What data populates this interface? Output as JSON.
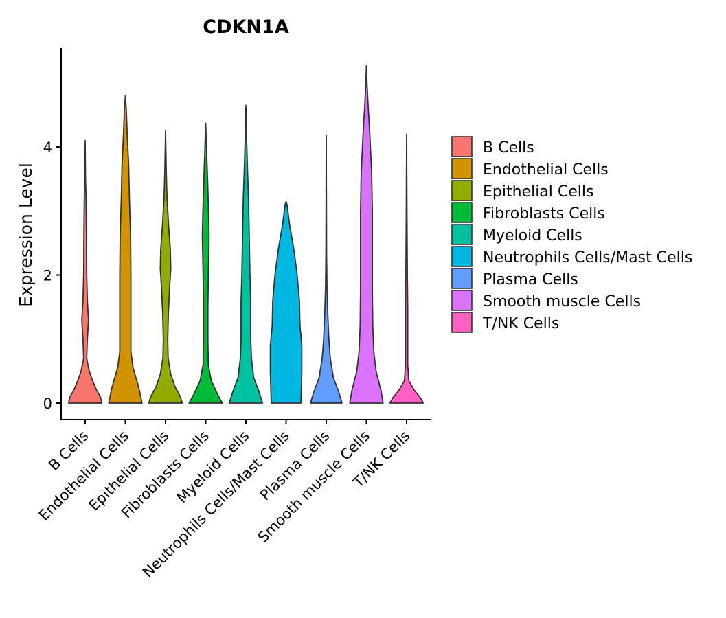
{
  "chart_data": {
    "type": "violin",
    "title": "CDKN1A",
    "xlabel": "",
    "ylabel": "Expression Level",
    "ylim": [
      -0.25,
      5.5
    ],
    "yticks": [
      0,
      2,
      4
    ],
    "categories": [
      "B Cells",
      "Endothelial Cells",
      "Epithelial Cells",
      "Fibroblasts Cells",
      "Myeloid Cells",
      "Neutrophils Cells/Mast Cells",
      "Plasma Cells",
      "Smooth muscle Cells",
      "T/NK Cells"
    ],
    "colors": [
      "#F8766D",
      "#D39200",
      "#93AA00",
      "#00BA38",
      "#00C19F",
      "#00B9E3",
      "#619CFF",
      "#DB72FB",
      "#FF61C3"
    ],
    "legend": {
      "position": "right",
      "entries": [
        "B Cells",
        "Endothelial Cells",
        "Epithelial Cells",
        "Fibroblasts Cells",
        "Myeloid Cells",
        "Neutrophils Cells/Mast Cells",
        "Plasma Cells",
        "Smooth muscle Cells",
        "T/NK Cells"
      ]
    },
    "distributions": [
      {
        "name": "B Cells",
        "max": 4.1,
        "profile": [
          [
            0,
            0.9
          ],
          [
            0.1,
            0.82
          ],
          [
            0.2,
            0.62
          ],
          [
            0.35,
            0.4
          ],
          [
            0.5,
            0.22
          ],
          [
            0.7,
            0.08
          ],
          [
            1.0,
            0.12
          ],
          [
            1.3,
            0.18
          ],
          [
            1.6,
            0.12
          ],
          [
            2.0,
            0.08
          ],
          [
            2.6,
            0.07
          ],
          [
            3.2,
            0.05
          ],
          [
            3.5,
            0.02
          ],
          [
            4.1,
            0.0
          ]
        ]
      },
      {
        "name": "Endothelial Cells",
        "max": 4.8,
        "profile": [
          [
            0,
            0.9
          ],
          [
            0.25,
            0.72
          ],
          [
            0.55,
            0.42
          ],
          [
            0.8,
            0.3
          ],
          [
            1.2,
            0.3
          ],
          [
            2.0,
            0.3
          ],
          [
            2.6,
            0.28
          ],
          [
            3.2,
            0.22
          ],
          [
            3.7,
            0.18
          ],
          [
            4.2,
            0.1
          ],
          [
            4.6,
            0.05
          ],
          [
            4.8,
            0.0
          ]
        ]
      },
      {
        "name": "Epithelial Cells",
        "max": 4.25,
        "profile": [
          [
            0,
            0.9
          ],
          [
            0.1,
            0.8
          ],
          [
            0.25,
            0.52
          ],
          [
            0.45,
            0.28
          ],
          [
            0.7,
            0.14
          ],
          [
            1.0,
            0.12
          ],
          [
            1.4,
            0.15
          ],
          [
            1.8,
            0.22
          ],
          [
            2.1,
            0.28
          ],
          [
            2.4,
            0.26
          ],
          [
            2.8,
            0.16
          ],
          [
            3.2,
            0.08
          ],
          [
            3.6,
            0.04
          ],
          [
            4.25,
            0.0
          ]
        ]
      },
      {
        "name": "Fibroblasts Cells",
        "max": 4.37,
        "profile": [
          [
            0,
            0.9
          ],
          [
            0.15,
            0.62
          ],
          [
            0.35,
            0.3
          ],
          [
            0.6,
            0.14
          ],
          [
            1.0,
            0.12
          ],
          [
            1.5,
            0.12
          ],
          [
            2.0,
            0.14
          ],
          [
            2.6,
            0.18
          ],
          [
            3.0,
            0.15
          ],
          [
            3.5,
            0.1
          ],
          [
            3.9,
            0.05
          ],
          [
            4.37,
            0.0
          ]
        ]
      },
      {
        "name": "Myeloid Cells",
        "max": 4.65,
        "profile": [
          [
            0,
            0.9
          ],
          [
            0.2,
            0.68
          ],
          [
            0.4,
            0.42
          ],
          [
            0.7,
            0.3
          ],
          [
            1.0,
            0.26
          ],
          [
            1.6,
            0.26
          ],
          [
            2.0,
            0.22
          ],
          [
            2.6,
            0.18
          ],
          [
            3.2,
            0.14
          ],
          [
            3.7,
            0.08
          ],
          [
            4.2,
            0.03
          ],
          [
            4.65,
            0.0
          ]
        ]
      },
      {
        "name": "Neutrophils Cells/Mast Cells",
        "max": 3.15,
        "profile": [
          [
            0,
            0.8
          ],
          [
            0.5,
            0.85
          ],
          [
            0.9,
            0.85
          ],
          [
            1.2,
            0.75
          ],
          [
            1.6,
            0.72
          ],
          [
            2.0,
            0.6
          ],
          [
            2.4,
            0.42
          ],
          [
            2.8,
            0.18
          ],
          [
            3.1,
            0.05
          ],
          [
            3.15,
            0.0
          ]
        ]
      },
      {
        "name": "Plasma Cells",
        "max": 4.18,
        "profile": [
          [
            0,
            0.85
          ],
          [
            0.15,
            0.7
          ],
          [
            0.4,
            0.38
          ],
          [
            0.7,
            0.22
          ],
          [
            1.0,
            0.14
          ],
          [
            1.4,
            0.08
          ],
          [
            1.8,
            0.04
          ],
          [
            2.3,
            0.02
          ],
          [
            3.0,
            0.01
          ],
          [
            4.18,
            0.0
          ]
        ]
      },
      {
        "name": "Smooth muscle Cells",
        "max": 5.27,
        "profile": [
          [
            0,
            0.9
          ],
          [
            0.2,
            0.78
          ],
          [
            0.5,
            0.52
          ],
          [
            0.8,
            0.4
          ],
          [
            1.2,
            0.34
          ],
          [
            1.8,
            0.32
          ],
          [
            2.4,
            0.32
          ],
          [
            3.0,
            0.32
          ],
          [
            3.6,
            0.28
          ],
          [
            4.2,
            0.18
          ],
          [
            4.7,
            0.08
          ],
          [
            5.0,
            0.03
          ],
          [
            5.27,
            0.0
          ]
        ]
      },
      {
        "name": "T/NK Cells",
        "max": 4.2,
        "profile": [
          [
            0,
            0.9
          ],
          [
            0.08,
            0.75
          ],
          [
            0.2,
            0.42
          ],
          [
            0.35,
            0.12
          ],
          [
            0.6,
            0.06
          ],
          [
            1.0,
            0.06
          ],
          [
            1.5,
            0.06
          ],
          [
            2.0,
            0.04
          ],
          [
            2.5,
            0.03
          ],
          [
            3.0,
            0.02
          ],
          [
            4.2,
            0.0
          ]
        ]
      }
    ]
  }
}
